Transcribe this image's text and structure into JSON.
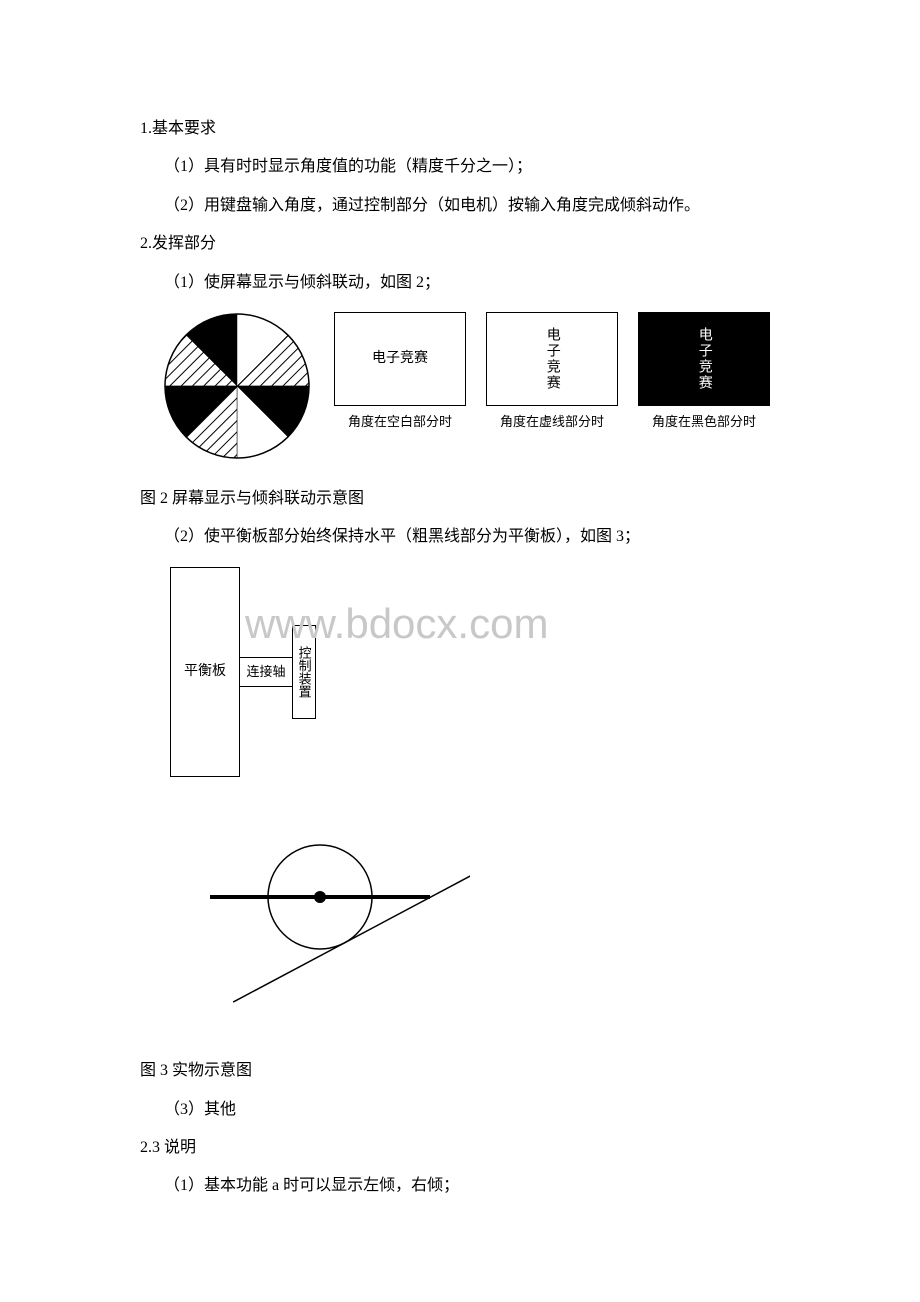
{
  "text": {
    "l1": "1.基本要求",
    "l2": "（1）具有时时显示角度值的功能（精度千分之一）；",
    "l3": "（2）用键盘输入角度，通过控制部分（如电机）按输入角度完成倾斜动作。",
    "l4": "2.发挥部分",
    "l5": "（1）使屏幕显示与倾斜联动，如图 2；",
    "l6": "图 2 屏幕显示与倾斜联动示意图",
    "l7": "（2）使平衡板部分始终保持水平（粗黑线部分为平衡板），如图 3；",
    "l8": "图 3 实物示意图",
    "l9": "（3）其他",
    "l10": "2.3 说明",
    "l11": "（1）基本功能 a 时可以显示左倾，右倾；"
  },
  "fig2": {
    "box1_label": "电子竞赛",
    "box2_label": "电子竞赛",
    "box3_label": "电子竞赛",
    "cap1": "角度在空白部分时",
    "cap2": "角度在虚线部分时",
    "cap3": "角度在黑色部分时",
    "circle": {
      "r": 72,
      "stroke": "#000000",
      "sectors": [
        {
          "start": -90,
          "end": -45,
          "fill": "hatch"
        },
        {
          "start": -45,
          "end": 0,
          "fill": "#000000"
        },
        {
          "start": 0,
          "end": 45,
          "fill": "#ffffff"
        },
        {
          "start": 45,
          "end": 90,
          "fill": "hatch"
        },
        {
          "start": 90,
          "end": 135,
          "fill": "#000000"
        },
        {
          "start": 135,
          "end": 180,
          "fill": "#ffffff"
        },
        {
          "start": 180,
          "end": 225,
          "fill": "hatch"
        },
        {
          "start": 225,
          "end": 270,
          "fill": "#000000"
        }
      ]
    }
  },
  "fig3a": {
    "left_label": "平衡板",
    "mid_label": "连接轴",
    "right_label": "控制装置"
  },
  "fig3b": {
    "circle_r": 52,
    "stroke": "#000000",
    "balance_line_width": 4,
    "slope_angle_deg": 28,
    "slope_length": 280
  },
  "watermark": "www.bdocx.com",
  "colors": {
    "text": "#000000",
    "bg": "#ffffff",
    "watermark": "#c8c8c8"
  }
}
